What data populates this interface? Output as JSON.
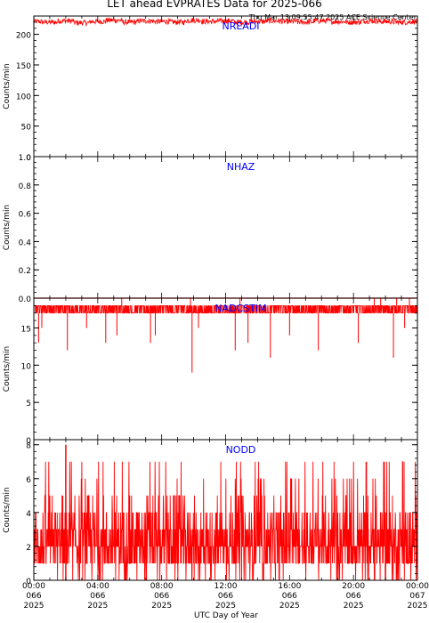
{
  "title": "LET ahead EVPRATES Data for 2025-066",
  "timestamp": "Thu Mar 13 09:55:47 2025 ACE Science Center",
  "xlabel": "UTC Day of Year",
  "colors": {
    "series": "#ff0000",
    "panel_label": "#0000ff",
    "axis": "#000000"
  },
  "x_ticks": [
    {
      "time": "00:00",
      "doy": "066",
      "year": "2025"
    },
    {
      "time": "04:00",
      "doy": "066",
      "year": "2025"
    },
    {
      "time": "08:00",
      "doy": "066",
      "year": "2025"
    },
    {
      "time": "12:00",
      "doy": "066",
      "year": "2025"
    },
    {
      "time": "16:00",
      "doy": "066",
      "year": "2025"
    },
    {
      "time": "20:00",
      "doy": "066",
      "year": "2025"
    },
    {
      "time": "00:00",
      "doy": "067",
      "year": "2025"
    }
  ],
  "chart_data": [
    {
      "type": "line",
      "name": "NREADI",
      "ylabel": "Counts/min",
      "xlim": [
        0,
        24
      ],
      "ylim": [
        0,
        230
      ],
      "yticks": [
        0,
        50,
        100,
        150,
        200
      ],
      "ytick_labels": [
        "0",
        "50",
        "100",
        "150",
        "200"
      ],
      "typical_range": [
        214,
        228
      ],
      "x": [
        0,
        1,
        2,
        3,
        4,
        5,
        6,
        7,
        8,
        9,
        10,
        11,
        12,
        13,
        14,
        15,
        16,
        17,
        18,
        19,
        20,
        21,
        22,
        23,
        24
      ],
      "values": [
        221,
        220,
        222,
        219,
        221,
        223,
        220,
        222,
        221,
        220,
        223,
        221,
        222,
        220,
        221,
        222,
        221,
        220,
        222,
        221,
        220,
        222,
        221,
        220,
        221
      ]
    },
    {
      "type": "line",
      "name": "NHAZ",
      "ylabel": "Counts/min",
      "xlim": [
        0,
        24
      ],
      "ylim": [
        0,
        1
      ],
      "yticks": [
        0,
        0.2,
        0.4,
        0.6,
        0.8,
        1.0
      ],
      "ytick_labels": [
        "0.0",
        "0.2",
        "0.4",
        "0.6",
        "0.8",
        "1.0"
      ],
      "x": [
        0,
        24
      ],
      "values": [
        0,
        0
      ]
    },
    {
      "type": "line",
      "name": "NADCSTIM",
      "ylabel": "Counts/min",
      "xlim": [
        0,
        24
      ],
      "ylim": [
        0,
        19
      ],
      "yticks": [
        0,
        5,
        10,
        15
      ],
      "ytick_labels": [
        "0",
        "5",
        "10",
        "15"
      ],
      "typical_range": [
        17,
        18
      ],
      "dips": [
        {
          "x": 0.3,
          "y": 13
        },
        {
          "x": 0.5,
          "y": 15
        },
        {
          "x": 2.1,
          "y": 12
        },
        {
          "x": 3.3,
          "y": 15
        },
        {
          "x": 4.5,
          "y": 13
        },
        {
          "x": 5.2,
          "y": 14
        },
        {
          "x": 7.3,
          "y": 13
        },
        {
          "x": 7.6,
          "y": 14
        },
        {
          "x": 9.9,
          "y": 9
        },
        {
          "x": 10.3,
          "y": 15
        },
        {
          "x": 12.6,
          "y": 12
        },
        {
          "x": 13.4,
          "y": 13
        },
        {
          "x": 14.8,
          "y": 11
        },
        {
          "x": 16.0,
          "y": 14
        },
        {
          "x": 17.8,
          "y": 12
        },
        {
          "x": 20.3,
          "y": 13
        },
        {
          "x": 22.5,
          "y": 11
        },
        {
          "x": 23.2,
          "y": 15
        }
      ],
      "spikes": [
        {
          "x": 5.5,
          "y": 19
        },
        {
          "x": 9.8,
          "y": 19
        },
        {
          "x": 12.9,
          "y": 19
        },
        {
          "x": 21.3,
          "y": 19
        },
        {
          "x": 21.7,
          "y": 19
        },
        {
          "x": 22.7,
          "y": 19
        },
        {
          "x": 23.5,
          "y": 19
        }
      ]
    },
    {
      "type": "line",
      "name": "NODD",
      "ylabel": "Counts/min",
      "xlim": [
        0,
        24
      ],
      "ylim": [
        0,
        8.3
      ],
      "yticks": [
        0,
        2,
        4,
        6,
        8
      ],
      "ytick_labels": [
        "0",
        "2",
        "4",
        "6",
        "8"
      ],
      "typical_range": [
        0,
        5
      ],
      "max": {
        "x": 2.0,
        "y": 8
      }
    }
  ]
}
